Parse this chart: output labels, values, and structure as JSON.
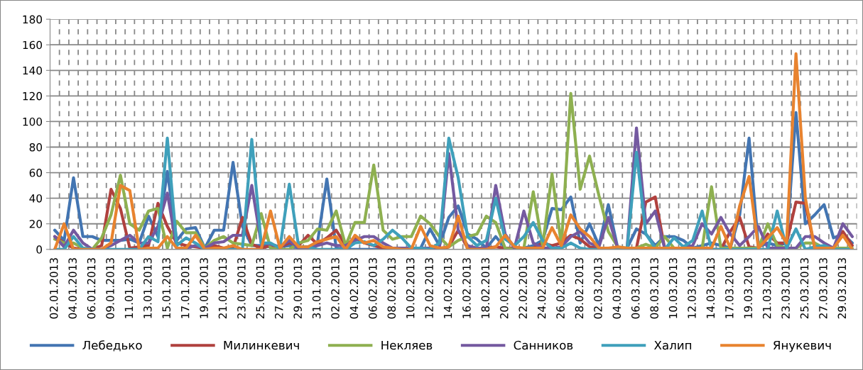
{
  "chart_data": {
    "type": "line",
    "categories": [
      "02.01.2013",
      null,
      "04.01.2013",
      null,
      "06.01.2013",
      null,
      "09.01.2013",
      null,
      "11.01.2013",
      null,
      "13.01.2013",
      null,
      "15.01.2013",
      null,
      "17.01.2013",
      null,
      "19.01.2013",
      null,
      "21.01.2013",
      null,
      "23.01.2013",
      null,
      "25.01.2013",
      null,
      "27.01.2013",
      null,
      "29.01.2013",
      null,
      "31.01.2013",
      null,
      "02.02.2013",
      null,
      "04.02.2013",
      null,
      "06.02.2013",
      null,
      "08.02.2013",
      null,
      "10.02.2013",
      null,
      "12.02.2013",
      null,
      "14.02.2013",
      null,
      "16.02.2013",
      null,
      "18.02.2013",
      null,
      "20.02.2013",
      null,
      "22.02.2013",
      null,
      "24.02.2013",
      null,
      "26.02.2013",
      null,
      "28.02.2013",
      null,
      "02.03.2013",
      null,
      "04.03.2013",
      null,
      "06.03.2013",
      null,
      "08.03.2013",
      null,
      "10.03.2013",
      null,
      "12.03.2013",
      null,
      "14.03.2013",
      null,
      "17.03.2013",
      null,
      "19.03.2013",
      null,
      "21.03.2013",
      null,
      "23.03.2013",
      null,
      "25.03.2013",
      null,
      "27.03.2013",
      null,
      "29.03.2013",
      null
    ],
    "series": [
      {
        "name": "Лебедько",
        "color": "#4375b2",
        "values": [
          15,
          7,
          56,
          10,
          10,
          7,
          7,
          7,
          8,
          5,
          26,
          10,
          61,
          7,
          16,
          17,
          1,
          15,
          15,
          68,
          18,
          3,
          3,
          2,
          2,
          3,
          1,
          2,
          5,
          55,
          1,
          0,
          0,
          0,
          0,
          0,
          0,
          0,
          0,
          1,
          16,
          3,
          25,
          34,
          12,
          8,
          1,
          10,
          1,
          1,
          1,
          3,
          7,
          32,
          31,
          41,
          5,
          20,
          3,
          35,
          1,
          1,
          16,
          12,
          3,
          10,
          10,
          7,
          1,
          3,
          5,
          3,
          1,
          27,
          87,
          2,
          5,
          3,
          5,
          107,
          20,
          27,
          35,
          9,
          12,
          5
        ]
      },
      {
        "name": "Милинкевич",
        "color": "#b0413e",
        "values": [
          10,
          5,
          1,
          0,
          0,
          3,
          47,
          32,
          1,
          2,
          3,
          36,
          18,
          5,
          3,
          2,
          1,
          3,
          1,
          1,
          25,
          4,
          1,
          3,
          2,
          5,
          3,
          11,
          4,
          9,
          15,
          3,
          9,
          5,
          3,
          1,
          1,
          1,
          1,
          1,
          1,
          0,
          2,
          15,
          1,
          1,
          1,
          2,
          1,
          1,
          1,
          1,
          5,
          3,
          5,
          11,
          8,
          2,
          1,
          1,
          1,
          1,
          1,
          37,
          41,
          1,
          0,
          0,
          0,
          0,
          0,
          0,
          14,
          25,
          2,
          1,
          12,
          5,
          5,
          37,
          36,
          1,
          0,
          0,
          14,
          3
        ]
      },
      {
        "name": "Некляев",
        "color": "#8eb050",
        "values": [
          8,
          5,
          5,
          1,
          0,
          9,
          27,
          58,
          20,
          15,
          30,
          32,
          1,
          22,
          13,
          13,
          1,
          7,
          10,
          5,
          4,
          3,
          28,
          1,
          0,
          0,
          5,
          7,
          16,
          15,
          30,
          3,
          21,
          21,
          66,
          15,
          8,
          10,
          10,
          26,
          20,
          10,
          2,
          7,
          10,
          12,
          26,
          21,
          1,
          0,
          1,
          45,
          3,
          59,
          3,
          122,
          47,
          73,
          42,
          14,
          2,
          1,
          1,
          4,
          1,
          10,
          1,
          1,
          1,
          1,
          49,
          1,
          1,
          1,
          1,
          1,
          20,
          3,
          1,
          1,
          5,
          5,
          1,
          1,
          1,
          1
        ]
      },
      {
        "name": "Санников",
        "color": "#7459a0",
        "values": [
          10,
          2,
          15,
          5,
          0,
          0,
          3,
          7,
          11,
          5,
          5,
          18,
          44,
          1,
          1,
          3,
          1,
          5,
          6,
          11,
          11,
          50,
          5,
          4,
          2,
          7,
          1,
          1,
          3,
          5,
          3,
          3,
          7,
          10,
          10,
          5,
          1,
          1,
          1,
          1,
          1,
          1,
          75,
          15,
          3,
          1,
          1,
          50,
          12,
          1,
          30,
          5,
          1,
          1,
          2,
          10,
          14,
          5,
          2,
          25,
          1,
          1,
          95,
          20,
          30,
          1,
          1,
          1,
          3,
          20,
          12,
          25,
          12,
          3,
          10,
          18,
          1,
          1,
          1,
          1,
          10,
          10,
          5,
          1,
          20,
          10
        ]
      },
      {
        "name": "Халип",
        "color": "#3fa0bb",
        "values": [
          0,
          0,
          10,
          1,
          0,
          0,
          0,
          0,
          0,
          0,
          10,
          6,
          87,
          3,
          9,
          5,
          0,
          0,
          0,
          0,
          0,
          86,
          5,
          5,
          1,
          51,
          2,
          2,
          0,
          0,
          0,
          0,
          5,
          6,
          3,
          8,
          15,
          9,
          1,
          1,
          0,
          5,
          87,
          56,
          10,
          3,
          7,
          40,
          8,
          3,
          10,
          21,
          7,
          1,
          1,
          5,
          1,
          0,
          0,
          0,
          0,
          0,
          76,
          12,
          1,
          0,
          9,
          2,
          7,
          30,
          0,
          0,
          0,
          0,
          0,
          0,
          0,
          30,
          1,
          16,
          0,
          2,
          3,
          0,
          0,
          0
        ]
      },
      {
        "name": "Янукевич",
        "color": "#e8832f",
        "values": [
          0,
          20,
          0,
          0,
          0,
          0,
          5,
          50,
          46,
          0,
          1,
          1,
          10,
          1,
          1,
          11,
          0,
          1,
          1,
          3,
          0,
          0,
          0,
          30,
          1,
          10,
          2,
          2,
          6,
          8,
          10,
          0,
          11,
          5,
          7,
          2,
          1,
          0,
          0,
          18,
          3,
          1,
          2,
          26,
          0,
          0,
          0,
          2,
          11,
          2,
          1,
          1,
          1,
          17,
          3,
          27,
          16,
          10,
          1,
          1,
          2,
          1,
          1,
          1,
          1,
          1,
          1,
          1,
          1,
          1,
          1,
          18,
          1,
          34,
          57,
          1,
          9,
          17,
          5,
          153,
          40,
          1,
          1,
          1,
          11,
          0
        ]
      }
    ],
    "ylim": [
      0,
      180
    ],
    "yticks": [
      0,
      20,
      40,
      60,
      80,
      100,
      120,
      140,
      160,
      180
    ],
    "grid": true,
    "legend": "bottom",
    "marker": "none",
    "line_style": "solid"
  }
}
